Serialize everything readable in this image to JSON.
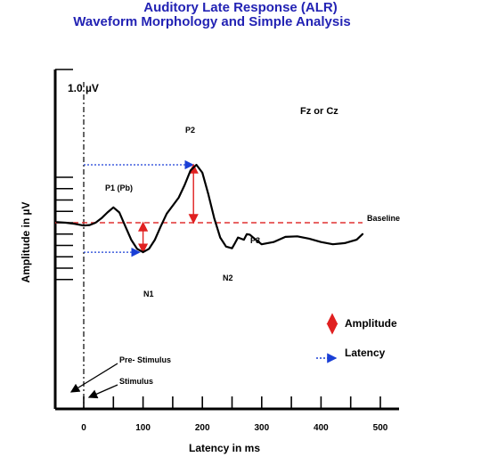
{
  "chart_data": {
    "type": "line",
    "title": "Auditory Late Response (ALR)",
    "subtitle": "Waveform Morphology and Simple Analysis",
    "xlabel": "Latency in ms",
    "ylabel": "Amplitude in µV",
    "x_ticks": [
      0,
      100,
      200,
      300,
      400,
      500
    ],
    "x_range": [
      -50,
      550
    ],
    "y_range_uv": [
      -5,
      5
    ],
    "scale_label": "1.0 µV",
    "electrode_label": "Fz or Cz",
    "baseline_label": "Baseline",
    "baseline_color": "#e03030",
    "waveform_color": "#000000",
    "amplitude_color": "#e02020",
    "latency_color": "#1a3fd6",
    "waveform": {
      "x": [
        -45,
        -30,
        -15,
        -5,
        0,
        10,
        20,
        30,
        40,
        50,
        60,
        70,
        80,
        90,
        100,
        110,
        120,
        130,
        140,
        150,
        160,
        170,
        180,
        190,
        200,
        210,
        220,
        230,
        240,
        250,
        255,
        260,
        270,
        275,
        280,
        290,
        300,
        320,
        340,
        360,
        380,
        400,
        420,
        440,
        460,
        470
      ],
      "y": [
        0.05,
        0.0,
        -0.1,
        -0.2,
        -0.25,
        -0.2,
        0.0,
        0.4,
        0.9,
        1.35,
        0.9,
        -0.3,
        -1.5,
        -2.3,
        -2.6,
        -2.3,
        -1.5,
        -0.3,
        0.8,
        1.5,
        2.2,
        3.3,
        4.6,
        5.1,
        4.4,
        2.5,
        0.4,
        -1.3,
        -2.1,
        -2.25,
        -1.8,
        -1.3,
        -1.5,
        -1.0,
        -1.05,
        -1.5,
        -1.9,
        -1.7,
        -1.25,
        -1.2,
        -1.4,
        -1.7,
        -1.9,
        -1.8,
        -1.5,
        -1.0
      ]
    },
    "peaks": [
      {
        "label": "P1 (Pb)"
      },
      {
        "label": "N1"
      },
      {
        "label": "P2"
      },
      {
        "label": "N2"
      },
      {
        "label": "P3"
      }
    ],
    "legend": [
      {
        "label": "Amplitude",
        "symbol": "double-arrow-vertical"
      },
      {
        "label": "Latency",
        "symbol": "arrow-horizontal-dotted"
      }
    ],
    "annotations": [
      {
        "label": "Pre- Stimulus"
      },
      {
        "label": "Stimulus"
      }
    ],
    "amplitude_markers": [
      {
        "peak": "N1",
        "from": 0,
        "to": -2.6
      },
      {
        "peak": "P2",
        "from": 0,
        "to": 5.1
      }
    ],
    "latency_markers": [
      {
        "peak": "N1",
        "x_end": 100
      },
      {
        "peak": "P2",
        "x_end": 190
      }
    ]
  }
}
